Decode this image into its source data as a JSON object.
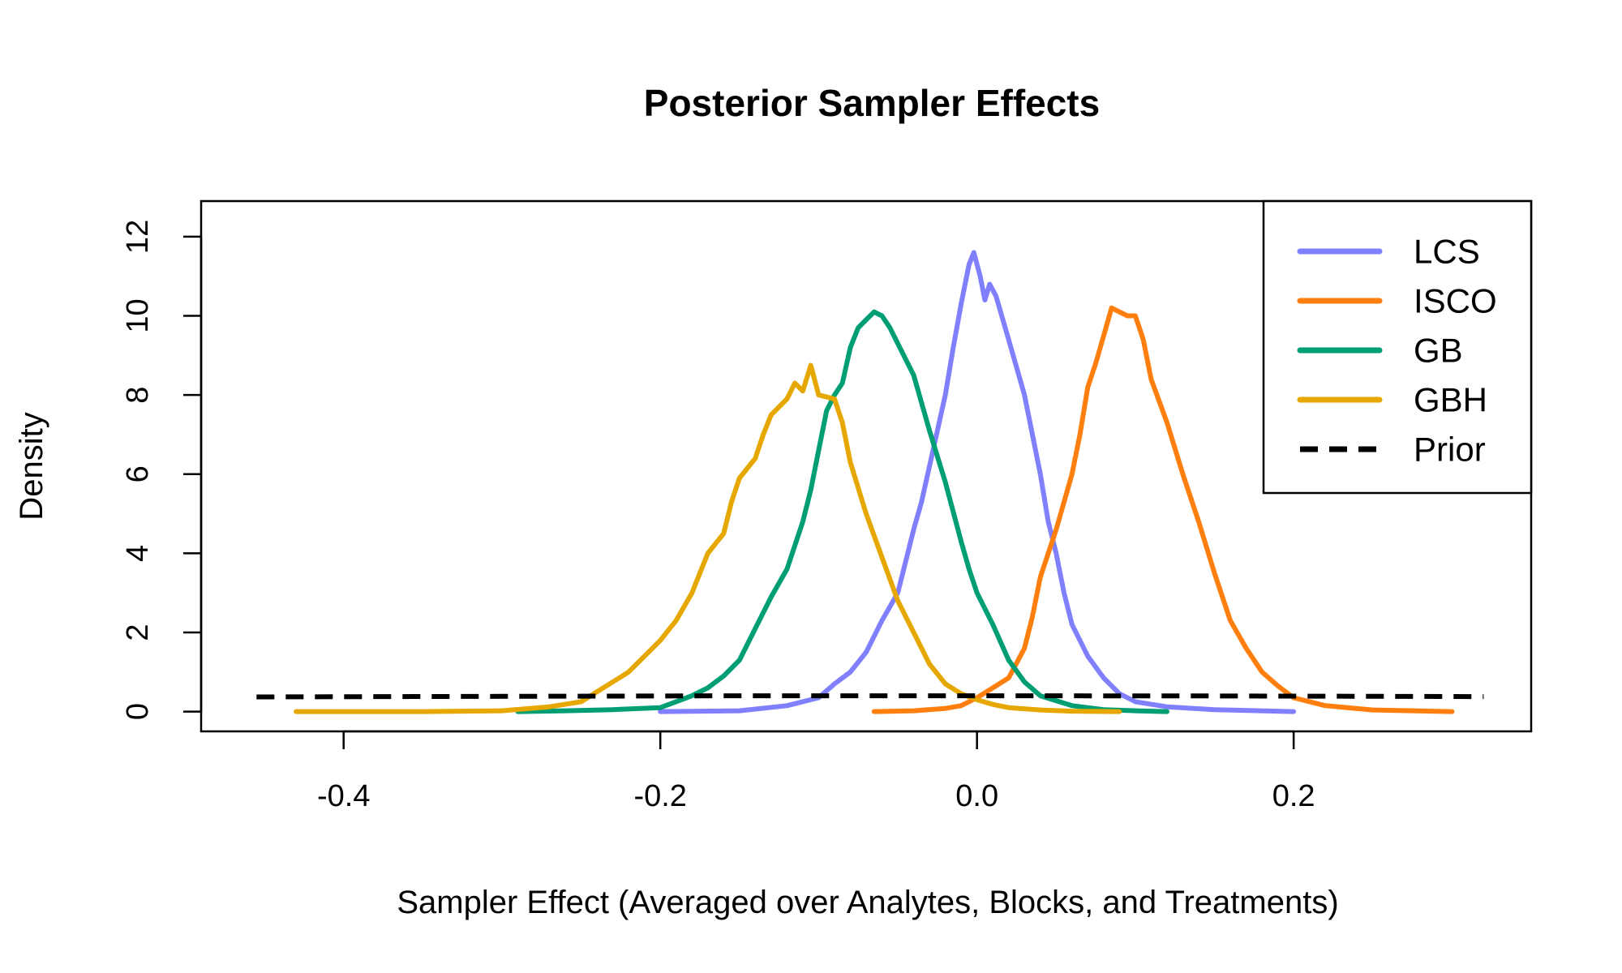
{
  "chart_data": {
    "type": "line",
    "title": "Posterior Sampler Effects",
    "xlabel": "Sampler Effect (Averaged over Analytes, Blocks, and Treatments)",
    "ylabel": "Density",
    "xlim": [
      -0.49,
      0.35
    ],
    "ylim": [
      -0.5,
      12.9
    ],
    "x_ticks": [
      -0.4,
      -0.2,
      0.0,
      0.2
    ],
    "x_tick_labels": [
      "-0.4",
      "-0.2",
      "0.0",
      "0.2"
    ],
    "y_ticks": [
      0,
      2,
      4,
      6,
      8,
      10,
      12
    ],
    "y_tick_labels": [
      "0",
      "2",
      "4",
      "6",
      "8",
      "10",
      "12"
    ],
    "legend_position": "top-right",
    "series": [
      {
        "name": "LCS",
        "color": "#8080FF",
        "dash": false,
        "points": [
          [
            -0.2,
            0
          ],
          [
            -0.15,
            0.02
          ],
          [
            -0.12,
            0.15
          ],
          [
            -0.1,
            0.35
          ],
          [
            -0.09,
            0.7
          ],
          [
            -0.08,
            1.0
          ],
          [
            -0.07,
            1.5
          ],
          [
            -0.06,
            2.3
          ],
          [
            -0.05,
            3.0
          ],
          [
            -0.04,
            4.6
          ],
          [
            -0.035,
            5.3
          ],
          [
            -0.03,
            6.2
          ],
          [
            -0.02,
            8.0
          ],
          [
            -0.015,
            9.2
          ],
          [
            -0.01,
            10.3
          ],
          [
            -0.005,
            11.3
          ],
          [
            -0.002,
            11.6
          ],
          [
            0.002,
            11.0
          ],
          [
            0.005,
            10.4
          ],
          [
            0.008,
            10.8
          ],
          [
            0.012,
            10.5
          ],
          [
            0.02,
            9.4
          ],
          [
            0.03,
            8.0
          ],
          [
            0.04,
            6.0
          ],
          [
            0.045,
            4.8
          ],
          [
            0.05,
            4.0
          ],
          [
            0.055,
            3.0
          ],
          [
            0.06,
            2.2
          ],
          [
            0.07,
            1.4
          ],
          [
            0.08,
            0.85
          ],
          [
            0.09,
            0.45
          ],
          [
            0.1,
            0.25
          ],
          [
            0.12,
            0.12
          ],
          [
            0.15,
            0.05
          ],
          [
            0.2,
            0.0
          ]
        ]
      },
      {
        "name": "ISCO",
        "color": "#FF7F0E",
        "dash": false,
        "points": [
          [
            -0.065,
            0
          ],
          [
            -0.04,
            0.02
          ],
          [
            -0.02,
            0.08
          ],
          [
            -0.01,
            0.15
          ],
          [
            0.0,
            0.35
          ],
          [
            0.01,
            0.6
          ],
          [
            0.02,
            0.85
          ],
          [
            0.03,
            1.6
          ],
          [
            0.035,
            2.4
          ],
          [
            0.04,
            3.4
          ],
          [
            0.05,
            4.6
          ],
          [
            0.06,
            6.0
          ],
          [
            0.065,
            7.0
          ],
          [
            0.07,
            8.2
          ],
          [
            0.075,
            8.8
          ],
          [
            0.08,
            9.5
          ],
          [
            0.085,
            10.2
          ],
          [
            0.09,
            10.1
          ],
          [
            0.095,
            10.0
          ],
          [
            0.1,
            10.0
          ],
          [
            0.105,
            9.4
          ],
          [
            0.11,
            8.4
          ],
          [
            0.12,
            7.3
          ],
          [
            0.13,
            6.0
          ],
          [
            0.14,
            4.8
          ],
          [
            0.15,
            3.5
          ],
          [
            0.16,
            2.3
          ],
          [
            0.17,
            1.6
          ],
          [
            0.18,
            1.0
          ],
          [
            0.19,
            0.65
          ],
          [
            0.2,
            0.35
          ],
          [
            0.22,
            0.15
          ],
          [
            0.25,
            0.04
          ],
          [
            0.3,
            0.0
          ]
        ]
      },
      {
        "name": "GB",
        "color": "#009E73",
        "dash": false,
        "points": [
          [
            -0.29,
            0
          ],
          [
            -0.26,
            0.02
          ],
          [
            -0.23,
            0.05
          ],
          [
            -0.2,
            0.1
          ],
          [
            -0.19,
            0.25
          ],
          [
            -0.18,
            0.4
          ],
          [
            -0.17,
            0.6
          ],
          [
            -0.16,
            0.9
          ],
          [
            -0.15,
            1.3
          ],
          [
            -0.14,
            2.1
          ],
          [
            -0.13,
            2.9
          ],
          [
            -0.12,
            3.6
          ],
          [
            -0.11,
            4.8
          ],
          [
            -0.105,
            5.6
          ],
          [
            -0.1,
            6.6
          ],
          [
            -0.095,
            7.6
          ],
          [
            -0.09,
            8.0
          ],
          [
            -0.085,
            8.3
          ],
          [
            -0.08,
            9.2
          ],
          [
            -0.075,
            9.7
          ],
          [
            -0.07,
            9.9
          ],
          [
            -0.065,
            10.1
          ],
          [
            -0.06,
            10.0
          ],
          [
            -0.055,
            9.7
          ],
          [
            -0.05,
            9.3
          ],
          [
            -0.04,
            8.5
          ],
          [
            -0.03,
            7.1
          ],
          [
            -0.02,
            5.8
          ],
          [
            -0.01,
            4.3
          ],
          [
            -0.005,
            3.6
          ],
          [
            0.0,
            3.0
          ],
          [
            0.01,
            2.2
          ],
          [
            0.02,
            1.3
          ],
          [
            0.03,
            0.75
          ],
          [
            0.04,
            0.4
          ],
          [
            0.06,
            0.15
          ],
          [
            0.08,
            0.05
          ],
          [
            0.1,
            0.02
          ],
          [
            0.12,
            0.0
          ]
        ]
      },
      {
        "name": "GBH",
        "color": "#E6A800",
        "dash": false,
        "points": [
          [
            -0.43,
            0
          ],
          [
            -0.35,
            0
          ],
          [
            -0.3,
            0.02
          ],
          [
            -0.27,
            0.12
          ],
          [
            -0.25,
            0.25
          ],
          [
            -0.24,
            0.5
          ],
          [
            -0.23,
            0.75
          ],
          [
            -0.22,
            1.0
          ],
          [
            -0.21,
            1.4
          ],
          [
            -0.2,
            1.8
          ],
          [
            -0.19,
            2.3
          ],
          [
            -0.18,
            3.0
          ],
          [
            -0.17,
            4.0
          ],
          [
            -0.16,
            4.5
          ],
          [
            -0.155,
            5.3
          ],
          [
            -0.15,
            5.9
          ],
          [
            -0.14,
            6.4
          ],
          [
            -0.135,
            7.0
          ],
          [
            -0.13,
            7.5
          ],
          [
            -0.12,
            7.9
          ],
          [
            -0.115,
            8.3
          ],
          [
            -0.11,
            8.1
          ],
          [
            -0.105,
            8.75
          ],
          [
            -0.1,
            8.0
          ],
          [
            -0.09,
            7.9
          ],
          [
            -0.085,
            7.3
          ],
          [
            -0.08,
            6.3
          ],
          [
            -0.07,
            5.0
          ],
          [
            -0.06,
            3.9
          ],
          [
            -0.05,
            2.8
          ],
          [
            -0.04,
            2.0
          ],
          [
            -0.03,
            1.2
          ],
          [
            -0.02,
            0.7
          ],
          [
            -0.01,
            0.45
          ],
          [
            0.0,
            0.3
          ],
          [
            0.01,
            0.18
          ],
          [
            0.02,
            0.1
          ],
          [
            0.04,
            0.04
          ],
          [
            0.06,
            0.01
          ],
          [
            0.09,
            0.0
          ]
        ]
      },
      {
        "name": "Prior",
        "color": "#000000",
        "dash": true,
        "points": [
          [
            -0.455,
            0.37
          ],
          [
            -0.3,
            0.385
          ],
          [
            -0.15,
            0.4
          ],
          [
            0.0,
            0.4
          ],
          [
            0.15,
            0.395
          ],
          [
            0.32,
            0.38
          ]
        ]
      }
    ]
  }
}
